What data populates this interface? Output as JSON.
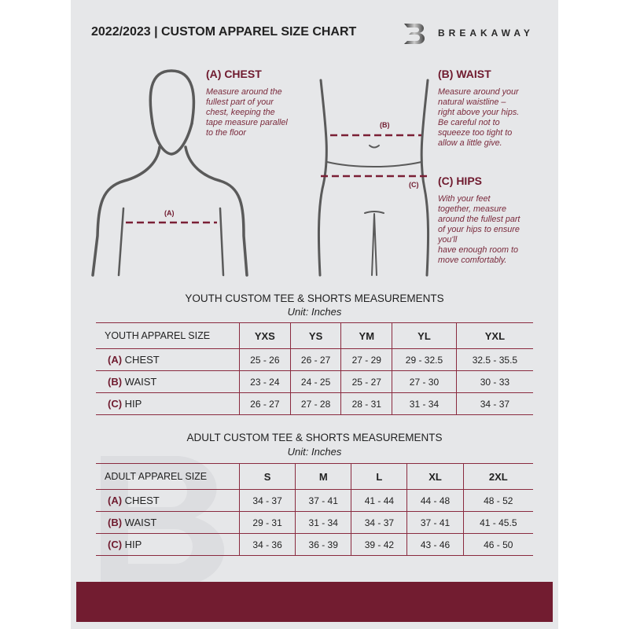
{
  "header": {
    "title": "2022/2023  |  CUSTOM APPAREL SIZE CHART",
    "brand": "BREAKAWAY",
    "logo_letter": "B"
  },
  "guide": {
    "chest": {
      "heading": "(A) CHEST",
      "marker": "(A)",
      "lines": [
        "Measure around the",
        "fullest part of your",
        "chest, keeping the",
        "tape measure parallel",
        "to the floor"
      ]
    },
    "waist": {
      "heading": "(B) WAIST",
      "marker": "(B)",
      "lines": [
        "Measure around your",
        "natural waistline –",
        "right above your hips.",
        "Be careful not to",
        "squeeze too tight to",
        "allow a little give."
      ]
    },
    "hips": {
      "heading": "(C) HIPS",
      "marker": "(C)",
      "lines": [
        "With your feet",
        "together, measure",
        "around the fullest part",
        "of your hips to ensure",
        "you'll",
        "have enough room to",
        "move comfortably."
      ]
    }
  },
  "youth": {
    "title": "YOUTH CUSTOM TEE & SHORTS MEASUREMENTS",
    "unit": "Unit: Inches",
    "size_label": "YOUTH APPAREL SIZE",
    "sizes": [
      "YXS",
      "YS",
      "YM",
      "YL",
      "YXL"
    ],
    "rows": [
      {
        "code": "(A)",
        "name": "CHEST",
        "values": [
          "25 - 26",
          "26 - 27",
          "27 - 29",
          "29 - 32.5",
          "32.5 - 35.5"
        ]
      },
      {
        "code": "(B)",
        "name": "WAIST",
        "values": [
          "23 - 24",
          "24 - 25",
          "25 - 27",
          "27 - 30",
          "30 - 33"
        ]
      },
      {
        "code": "(C)",
        "name": "HIP",
        "values": [
          "26 - 27",
          "27 - 28",
          "28 - 31",
          "31 - 34",
          "34 - 37"
        ]
      }
    ]
  },
  "adult": {
    "title": "ADULT CUSTOM TEE & SHORTS MEASUREMENTS",
    "unit": "Unit: Inches",
    "size_label": "ADULT APPAREL SIZE",
    "sizes": [
      "S",
      "M",
      "L",
      "XL",
      "2XL"
    ],
    "rows": [
      {
        "code": "(A)",
        "name": "CHEST",
        "values": [
          "34 - 37",
          "37 - 41",
          "41 - 44",
          "44 - 48",
          "48 - 52"
        ]
      },
      {
        "code": "(B)",
        "name": "WAIST",
        "values": [
          "29 - 31",
          "31 - 34",
          "34 - 37",
          "37 - 41",
          "41 - 45.5"
        ]
      },
      {
        "code": "(C)",
        "name": "HIP",
        "values": [
          "34 - 36",
          "36 - 39",
          "39 - 42",
          "43 - 46",
          "46 - 50"
        ]
      }
    ]
  },
  "colors": {
    "accent": "#721c30",
    "background": "#e6e7e9",
    "figure": "#5a5a5a"
  }
}
